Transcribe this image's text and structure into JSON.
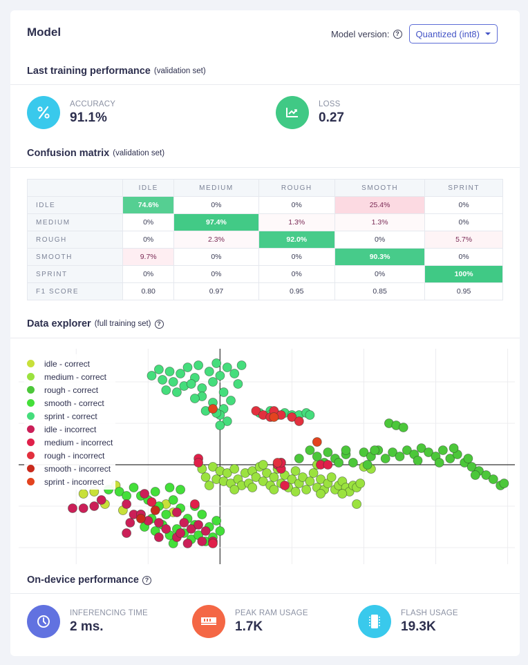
{
  "header": {
    "title": "Model",
    "model_version_label": "Model version:",
    "help_glyph": "?",
    "model_version_value": "Quantized (int8)"
  },
  "training": {
    "title": "Last training performance",
    "subtitle": "(validation set)",
    "metrics": [
      {
        "label": "ACCURACY",
        "value": "91.1%",
        "icon": "percent-icon",
        "color": "#39c9ec"
      },
      {
        "label": "LOSS",
        "value": "0.27",
        "icon": "line-chart-icon",
        "color": "#40c985"
      }
    ]
  },
  "confusion": {
    "title": "Confusion matrix",
    "subtitle": "(validation set)",
    "columns": [
      "IDLE",
      "MEDIUM",
      "ROUGH",
      "SMOOTH",
      "SPRINT"
    ],
    "rows": [
      {
        "label": "IDLE",
        "cells": [
          "74.6%",
          "0%",
          "0%",
          "25.4%",
          "0%"
        ],
        "values": [
          74.6,
          0,
          0,
          25.4,
          0
        ]
      },
      {
        "label": "MEDIUM",
        "cells": [
          "0%",
          "97.4%",
          "1.3%",
          "1.3%",
          "0%"
        ],
        "values": [
          0,
          97.4,
          1.3,
          1.3,
          0
        ]
      },
      {
        "label": "ROUGH",
        "cells": [
          "0%",
          "2.3%",
          "92.0%",
          "0%",
          "5.7%"
        ],
        "values": [
          0,
          2.3,
          92.0,
          0,
          5.7
        ]
      },
      {
        "label": "SMOOTH",
        "cells": [
          "9.7%",
          "0%",
          "0%",
          "90.3%",
          "0%"
        ],
        "values": [
          9.7,
          0,
          0,
          90.3,
          0
        ]
      },
      {
        "label": "SPRINT",
        "cells": [
          "0%",
          "0%",
          "0%",
          "0%",
          "100%"
        ],
        "values": [
          0,
          0,
          0,
          0,
          100
        ]
      }
    ],
    "f1": {
      "label": "F1 SCORE",
      "cells": [
        "0.80",
        "0.97",
        "0.95",
        "0.85",
        "0.95"
      ]
    }
  },
  "explorer": {
    "title": "Data explorer",
    "subtitle": "(full training set)"
  },
  "chart_data": {
    "type": "scatter",
    "title": "Data explorer",
    "xlim": [
      -2.8,
      4.1
    ],
    "ylim": [
      -2.4,
      2.8
    ],
    "grid": true,
    "legend_position": "top-left",
    "series": [
      {
        "name": "idle - correct",
        "color": "#c8e03a",
        "points": [
          [
            -1.9,
            -0.7
          ],
          [
            -1.75,
            -0.65
          ],
          [
            -1.6,
            -0.95
          ],
          [
            -1.45,
            -0.5
          ],
          [
            -1.35,
            -1.1
          ],
          [
            -1.1,
            -1.2
          ],
          [
            -0.65,
            -1.15
          ],
          [
            -0.75,
            -0.95
          ]
        ]
      },
      {
        "name": "medium - correct",
        "color": "#9be23f",
        "points": [
          [
            -0.25,
            -0.1
          ],
          [
            -0.2,
            -0.3
          ],
          [
            -0.1,
            -0.05
          ],
          [
            -0.05,
            -0.35
          ],
          [
            0.0,
            -0.15
          ],
          [
            0.05,
            -0.4
          ],
          [
            0.1,
            -0.2
          ],
          [
            0.15,
            -0.45
          ],
          [
            0.2,
            -0.1
          ],
          [
            0.25,
            -0.35
          ],
          [
            0.3,
            -0.5
          ],
          [
            0.35,
            -0.2
          ],
          [
            0.4,
            -0.45
          ],
          [
            0.45,
            -0.15
          ],
          [
            0.5,
            -0.3
          ],
          [
            0.55,
            -0.05
          ],
          [
            0.6,
            -0.4
          ],
          [
            0.65,
            -0.2
          ],
          [
            0.7,
            -0.5
          ],
          [
            0.75,
            -0.3
          ],
          [
            0.8,
            -0.1
          ],
          [
            0.85,
            -0.45
          ],
          [
            0.9,
            -0.25
          ],
          [
            0.95,
            -0.55
          ],
          [
            1.0,
            -0.35
          ],
          [
            1.05,
            -0.15
          ],
          [
            1.1,
            -0.45
          ],
          [
            1.15,
            -0.3
          ],
          [
            1.2,
            -0.6
          ],
          [
            1.25,
            -0.4
          ],
          [
            1.3,
            -0.2
          ],
          [
            1.35,
            -0.55
          ],
          [
            1.4,
            -0.35
          ],
          [
            1.45,
            -0.6
          ],
          [
            1.5,
            -0.45
          ],
          [
            1.55,
            -0.3
          ],
          [
            1.6,
            -0.6
          ],
          [
            1.65,
            -0.5
          ],
          [
            1.7,
            -0.4
          ],
          [
            1.75,
            -0.55
          ],
          [
            1.8,
            -0.65
          ],
          [
            1.85,
            -0.5
          ],
          [
            1.9,
            -0.55
          ],
          [
            1.95,
            -0.45
          ],
          [
            -0.15,
            -0.5
          ],
          [
            0.2,
            -0.6
          ],
          [
            0.45,
            -0.55
          ],
          [
            0.75,
            -0.6
          ],
          [
            1.05,
            -0.65
          ],
          [
            1.4,
            -0.7
          ],
          [
            1.7,
            -0.7
          ],
          [
            1.9,
            -0.95
          ],
          [
            2.0,
            -0.05
          ],
          [
            2.1,
            -0.1
          ],
          [
            0.6,
            0.0
          ],
          [
            1.35,
            0.0
          ]
        ]
      },
      {
        "name": "rough - correct",
        "color": "#4cc73a",
        "points": [
          [
            1.1,
            0.15
          ],
          [
            1.25,
            0.35
          ],
          [
            1.35,
            0.2
          ],
          [
            1.5,
            0.3
          ],
          [
            1.6,
            0.15
          ],
          [
            1.75,
            0.25
          ],
          [
            1.85,
            0.05
          ],
          [
            2.0,
            0.3
          ],
          [
            2.1,
            0.2
          ],
          [
            2.2,
            0.35
          ],
          [
            2.3,
            0.15
          ],
          [
            2.4,
            0.3
          ],
          [
            2.5,
            0.2
          ],
          [
            2.6,
            0.35
          ],
          [
            2.7,
            0.25
          ],
          [
            2.8,
            0.4
          ],
          [
            2.9,
            0.3
          ],
          [
            3.0,
            0.2
          ],
          [
            3.1,
            0.35
          ],
          [
            3.2,
            0.15
          ],
          [
            3.3,
            0.25
          ],
          [
            3.4,
            0.05
          ],
          [
            3.5,
            -0.05
          ],
          [
            3.6,
            -0.15
          ],
          [
            3.7,
            -0.25
          ],
          [
            3.8,
            -0.35
          ],
          [
            3.9,
            -0.5
          ],
          [
            3.95,
            -0.45
          ],
          [
            3.25,
            0.4
          ],
          [
            2.35,
            1.0
          ],
          [
            2.45,
            0.95
          ],
          [
            2.55,
            0.9
          ],
          [
            2.15,
            0.35
          ],
          [
            2.05,
            0.0
          ],
          [
            1.45,
            0.05
          ],
          [
            1.65,
            0.05
          ],
          [
            2.75,
            0.1
          ],
          [
            3.45,
            0.15
          ],
          [
            0.8,
            0.0
          ],
          [
            0.85,
            0.05
          ],
          [
            1.75,
            0.35
          ],
          [
            3.05,
            0.05
          ],
          [
            3.55,
            -0.25
          ]
        ]
      },
      {
        "name": "smooth - correct",
        "color": "#44df3a",
        "points": [
          [
            -1.4,
            -0.65
          ],
          [
            -1.2,
            -0.55
          ],
          [
            -1.1,
            -0.75
          ],
          [
            -1.0,
            -0.85
          ],
          [
            -0.9,
            -0.65
          ],
          [
            -0.85,
            -1.0
          ],
          [
            -0.75,
            -1.2
          ],
          [
            -0.65,
            -0.85
          ],
          [
            -0.55,
            -1.05
          ],
          [
            -0.45,
            -1.3
          ],
          [
            -0.35,
            -1.45
          ],
          [
            -0.25,
            -1.2
          ],
          [
            -0.15,
            -1.5
          ],
          [
            -0.05,
            -1.35
          ],
          [
            0.0,
            -1.6
          ],
          [
            -0.95,
            -1.3
          ],
          [
            -0.8,
            -1.45
          ],
          [
            -0.6,
            -1.55
          ],
          [
            -0.5,
            -1.65
          ],
          [
            -0.4,
            -1.8
          ],
          [
            -0.3,
            -1.7
          ],
          [
            -0.2,
            -1.85
          ],
          [
            -0.1,
            -1.75
          ],
          [
            -1.3,
            -0.75
          ],
          [
            -1.55,
            -0.6
          ],
          [
            -0.7,
            -0.55
          ],
          [
            -0.55,
            -0.6
          ],
          [
            -0.35,
            -1.0
          ],
          [
            -1.05,
            -1.5
          ],
          [
            -0.9,
            -1.6
          ],
          [
            -0.65,
            -1.9
          ],
          [
            -0.7,
            -1.7
          ]
        ]
      },
      {
        "name": "sprint - correct",
        "color": "#45dd7c",
        "points": [
          [
            -0.95,
            2.15
          ],
          [
            -0.85,
            2.3
          ],
          [
            -0.8,
            2.05
          ],
          [
            -0.7,
            2.25
          ],
          [
            -0.65,
            2.0
          ],
          [
            -0.55,
            2.2
          ],
          [
            -0.5,
            1.9
          ],
          [
            -0.45,
            2.35
          ],
          [
            -0.35,
            2.1
          ],
          [
            -0.3,
            2.4
          ],
          [
            -0.25,
            1.85
          ],
          [
            -0.15,
            2.25
          ],
          [
            -0.1,
            2.0
          ],
          [
            -0.05,
            2.45
          ],
          [
            0.0,
            2.15
          ],
          [
            0.05,
            1.75
          ],
          [
            0.1,
            2.35
          ],
          [
            0.2,
            2.2
          ],
          [
            0.25,
            1.95
          ],
          [
            0.3,
            2.4
          ],
          [
            0.15,
            1.55
          ],
          [
            0.05,
            1.35
          ],
          [
            0.0,
            1.2
          ],
          [
            -0.1,
            1.5
          ],
          [
            -0.2,
            1.3
          ],
          [
            -0.25,
            1.65
          ],
          [
            -0.75,
            1.8
          ],
          [
            -0.6,
            1.75
          ],
          [
            -0.35,
            1.6
          ],
          [
            -0.4,
            1.95
          ],
          [
            -0.05,
            1.25
          ],
          [
            0.1,
            1.05
          ],
          [
            0.0,
            0.95
          ],
          [
            0.55,
            1.25
          ],
          [
            0.7,
            1.3
          ],
          [
            0.8,
            1.2
          ],
          [
            0.9,
            1.25
          ],
          [
            1.0,
            1.2
          ],
          [
            1.1,
            1.2
          ],
          [
            1.2,
            1.25
          ],
          [
            1.25,
            1.2
          ],
          [
            0.7,
            1.2
          ]
        ]
      },
      {
        "name": "idle - incorrect",
        "color": "#cb1f58",
        "points": [
          [
            -2.05,
            -1.05
          ],
          [
            -1.9,
            -1.05
          ],
          [
            -1.75,
            -1.0
          ],
          [
            -1.65,
            -0.85
          ],
          [
            -1.3,
            -0.95
          ],
          [
            -1.05,
            -0.7
          ],
          [
            -1.2,
            -1.2
          ],
          [
            -1.25,
            -1.4
          ],
          [
            -1.0,
            -1.35
          ],
          [
            -0.85,
            -1.4
          ],
          [
            -0.6,
            -1.15
          ],
          [
            -0.5,
            -1.4
          ],
          [
            -0.4,
            -1.55
          ],
          [
            -0.3,
            -1.45
          ],
          [
            -0.2,
            -1.6
          ],
          [
            -0.45,
            -1.9
          ],
          [
            -0.6,
            -1.75
          ],
          [
            -0.85,
            -1.75
          ],
          [
            -1.1,
            -1.2
          ],
          [
            -1.3,
            -1.65
          ],
          [
            -0.55,
            -1.65
          ],
          [
            -0.25,
            -1.85
          ],
          [
            -0.1,
            -1.85
          ],
          [
            -0.75,
            -1.55
          ]
        ]
      },
      {
        "name": "medium - incorrect",
        "color": "#e0204a",
        "points": [
          [
            -0.3,
            0.15
          ],
          [
            -0.3,
            0.05
          ],
          [
            0.8,
            0.0
          ],
          [
            0.85,
            -0.1
          ],
          [
            0.9,
            -0.5
          ],
          [
            0.85,
            0.05
          ],
          [
            1.4,
            0.0
          ],
          [
            1.5,
            0.0
          ],
          [
            -0.95,
            -0.9
          ],
          [
            -0.1,
            -1.9
          ],
          [
            -0.35,
            -0.95
          ]
        ]
      },
      {
        "name": "rough - incorrect",
        "color": "#e2303e",
        "points": [
          [
            0.5,
            1.3
          ],
          [
            0.6,
            1.2
          ],
          [
            0.7,
            1.15
          ],
          [
            0.75,
            1.3
          ],
          [
            0.85,
            1.2
          ],
          [
            1.0,
            1.15
          ],
          [
            1.1,
            1.05
          ],
          [
            0.8,
            0.05
          ]
        ]
      },
      {
        "name": "smooth - incorrect",
        "color": "#c92a1c",
        "points": [
          [
            -1.1,
            -1.3
          ],
          [
            -0.9,
            -1.1
          ]
        ]
      },
      {
        "name": "sprint - incorrect",
        "color": "#e3431f",
        "points": [
          [
            -0.1,
            1.35
          ],
          [
            0.75,
            1.15
          ],
          [
            1.35,
            0.55
          ]
        ]
      }
    ]
  },
  "device": {
    "title": "On-device performance",
    "metrics": [
      {
        "label": "INFERENCING TIME",
        "value": "2 ms.",
        "icon": "clock-icon",
        "color": "#6172e0"
      },
      {
        "label": "PEAK RAM USAGE",
        "value": "1.7K",
        "icon": "ram-icon",
        "color": "#f46745"
      },
      {
        "label": "FLASH USAGE",
        "value": "19.3K",
        "icon": "chip-icon",
        "color": "#39c9ec"
      }
    ]
  }
}
